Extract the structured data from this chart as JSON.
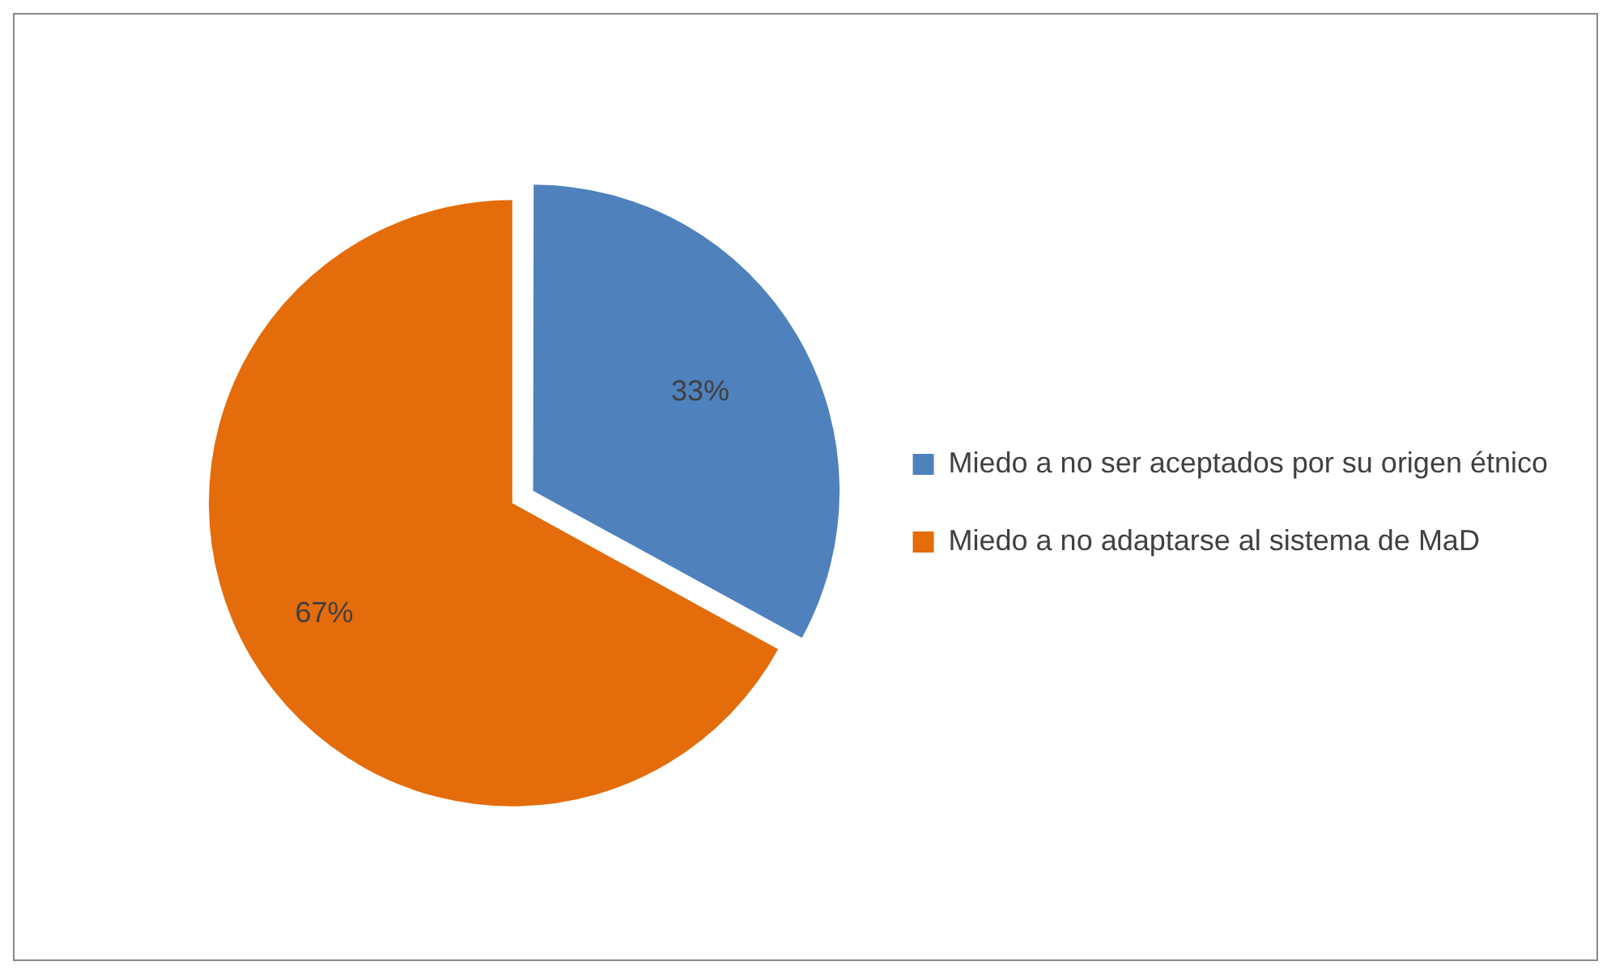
{
  "chart_data": {
    "type": "pie",
    "categories": [
      "Miedo a no ser aceptados por su origen étnico",
      "Miedo a no adaptarse al sistema de MaD"
    ],
    "values": [
      33,
      67
    ],
    "colors": [
      "#4f81bd",
      "#e46c0a"
    ],
    "value_labels": [
      "33%",
      "67%"
    ],
    "legend": "right"
  }
}
